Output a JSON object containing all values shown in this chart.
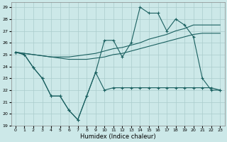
{
  "xlabel": "Humidex (Indice chaleur)",
  "bg_color": "#cce8e8",
  "grid_color": "#aacccc",
  "line_color": "#1a6060",
  "xlim": [
    -0.5,
    23.5
  ],
  "ylim": [
    19,
    29.4
  ],
  "yticks": [
    19,
    20,
    21,
    22,
    23,
    24,
    25,
    26,
    27,
    28,
    29
  ],
  "xticks": [
    0,
    1,
    2,
    3,
    4,
    5,
    6,
    7,
    8,
    9,
    10,
    11,
    12,
    13,
    14,
    15,
    16,
    17,
    18,
    19,
    20,
    21,
    22,
    23
  ],
  "line_zigzag_low_x": [
    0,
    1,
    2,
    3,
    4,
    5,
    6,
    7,
    8,
    9,
    10,
    11,
    12,
    13,
    14,
    15,
    16,
    17,
    18,
    19,
    20,
    21,
    22,
    23
  ],
  "line_zigzag_low_y": [
    25.2,
    25.0,
    23.9,
    23.0,
    21.5,
    21.5,
    20.3,
    19.5,
    21.5,
    23.5,
    22.0,
    22.2,
    22.2,
    22.2,
    22.2,
    22.2,
    22.2,
    22.2,
    22.2,
    22.2,
    22.2,
    22.2,
    22.2,
    22.0
  ],
  "line_zigzag_high_x": [
    0,
    1,
    2,
    3,
    4,
    5,
    6,
    7,
    8,
    9,
    10,
    11,
    12,
    13,
    14,
    15,
    16,
    17,
    18,
    19,
    20,
    21,
    22,
    23
  ],
  "line_zigzag_high_y": [
    25.2,
    25.0,
    23.9,
    23.0,
    21.5,
    21.5,
    20.3,
    19.5,
    21.5,
    23.5,
    26.2,
    26.2,
    24.8,
    26.0,
    29.0,
    28.5,
    28.5,
    27.0,
    28.0,
    27.5,
    26.5,
    23.0,
    22.0,
    22.0
  ],
  "line_trend_high_x": [
    0,
    1,
    2,
    3,
    4,
    5,
    6,
    7,
    8,
    9,
    10,
    11,
    12,
    13,
    14,
    15,
    16,
    17,
    18,
    19,
    20,
    21,
    22,
    23
  ],
  "line_trend_high_y": [
    25.2,
    25.1,
    25.0,
    24.9,
    24.8,
    24.8,
    24.8,
    24.9,
    25.0,
    25.1,
    25.3,
    25.5,
    25.6,
    25.8,
    26.0,
    26.3,
    26.5,
    26.7,
    27.0,
    27.2,
    27.5,
    27.5,
    27.5,
    27.5
  ],
  "line_trend_low_x": [
    0,
    1,
    2,
    3,
    4,
    5,
    6,
    7,
    8,
    9,
    10,
    11,
    12,
    13,
    14,
    15,
    16,
    17,
    18,
    19,
    20,
    21,
    22,
    23
  ],
  "line_trend_low_y": [
    25.2,
    25.1,
    25.0,
    24.9,
    24.8,
    24.7,
    24.6,
    24.6,
    24.6,
    24.7,
    24.8,
    25.0,
    25.1,
    25.3,
    25.5,
    25.7,
    25.9,
    26.1,
    26.3,
    26.5,
    26.7,
    26.8,
    26.8,
    26.8
  ]
}
